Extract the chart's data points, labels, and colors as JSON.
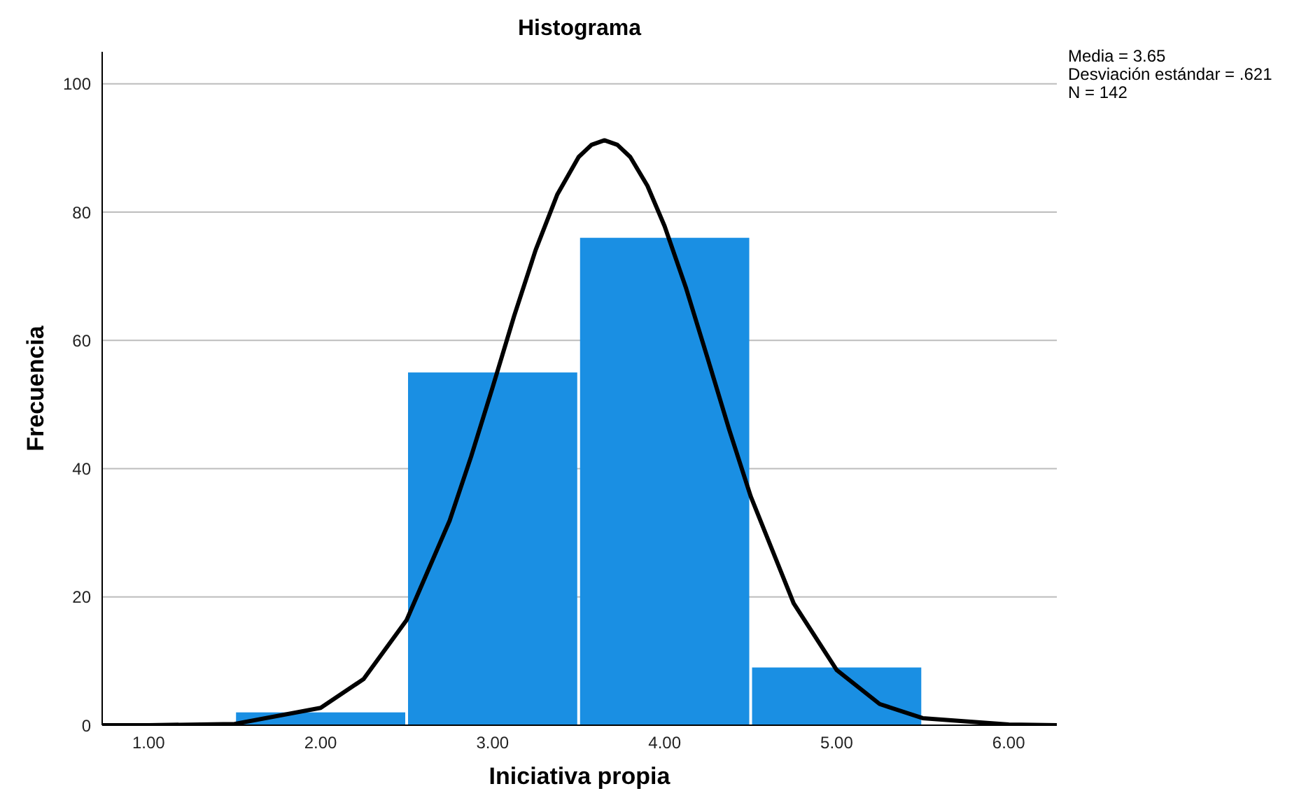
{
  "chart_data": {
    "type": "histogram",
    "title": "Histograma",
    "xlabel": "Iniciativa propia",
    "ylabel": "Frecuencia",
    "bins": [
      1.5,
      2.5,
      3.5,
      4.5,
      5.5
    ],
    "values": [
      2,
      55,
      76,
      9
    ],
    "color": "#1a8fe3",
    "series": [
      {
        "type": "line",
        "color": "#000000",
        "x": [
          0.73,
          1.0,
          1.5,
          2.0,
          2.25,
          2.5,
          2.75,
          2.875,
          3.0,
          3.125,
          3.25,
          3.375,
          3.5,
          3.575,
          3.65,
          3.725,
          3.8,
          3.9,
          4.0,
          4.125,
          4.25,
          4.375,
          4.5,
          4.75,
          5.0,
          5.25,
          5.5,
          6.0,
          6.28
        ],
        "values": [
          0,
          0,
          0.2,
          2.7,
          7.2,
          16.4,
          31.9,
          41.9,
          52.7,
          63.8,
          74.1,
          82.7,
          88.6,
          90.5,
          91.2,
          90.5,
          88.6,
          84.1,
          77.8,
          68.1,
          57.2,
          46.1,
          35.7,
          19.0,
          8.6,
          3.3,
          1.1,
          0.1,
          0
        ]
      }
    ],
    "xlim": [
      0.73,
      6.28
    ],
    "xticks": [
      {
        "value": 1,
        "label": "1.00"
      },
      {
        "value": 2,
        "label": "2.00"
      },
      {
        "value": 3,
        "label": "3.00"
      },
      {
        "value": 4,
        "label": "4.00"
      },
      {
        "value": 5,
        "label": "5.00"
      },
      {
        "value": 6,
        "label": "6.00"
      }
    ],
    "ylim": [
      0,
      105
    ],
    "yticks": [
      0,
      20,
      40,
      60,
      80,
      100
    ],
    "grid": "y",
    "marker": "none",
    "line_style": "solid",
    "annotations": [
      "Media = 3.65",
      "Desviación estándar = .621",
      "N = 142"
    ]
  }
}
